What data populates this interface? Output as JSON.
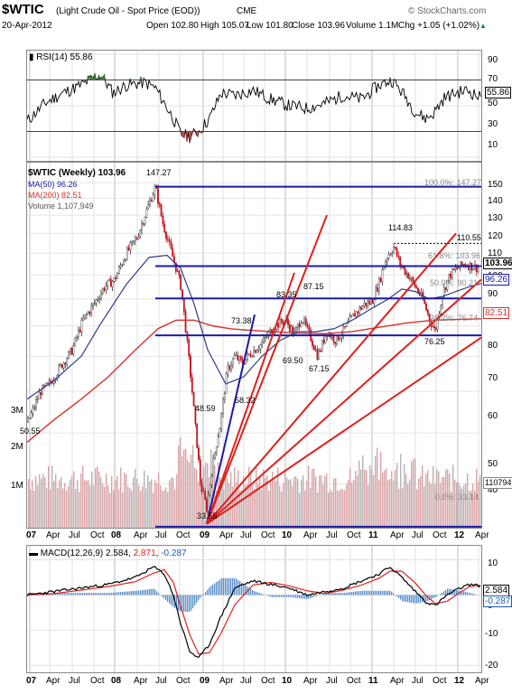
{
  "header": {
    "symbol": "$WTIC",
    "name": "(Light Crude Oil - Spot Price (EOD))",
    "exchange": "CME",
    "brand": "© StockCharts.com",
    "date": "20-Apr-2012",
    "open": "Open 102.80",
    "high": "High 105.07",
    "low": "Low 101.80",
    "close": "Close 103.96",
    "volume": "Volume 1.1M",
    "chg": "Chg +1.05 (+1.02%)",
    "chg_arrow": "▲"
  },
  "colors": {
    "blue": "#1a1aa8",
    "red": "#e0201c",
    "navy": "#2e3d8a",
    "ma200": "#d7322b",
    "vol": "#d9a3a6",
    "volgray": "#b4b4b4",
    "hist": "#5a8fc9",
    "candleUp": "#333333",
    "candleDn": "#c3121f"
  },
  "rsi": {
    "label": "RSI(14) 55.86",
    "current": "55.86",
    "ticks": [
      "90",
      "70",
      "50",
      "30",
      "10"
    ],
    "levels": [
      70,
      30
    ]
  },
  "price": {
    "label": "$WTIC (Weekly) 103.96",
    "ma50": "MA(50) 96.26",
    "ma200": "MA(200) 82.51",
    "volume": "Volume 1,107,949",
    "high_ann": "147.27",
    "ticks": [
      "150",
      "140",
      "130",
      "120",
      "110",
      "100",
      "90",
      "80",
      "70",
      "60",
      "50",
      "40"
    ],
    "last": "103.96",
    "last_ma50": "96.26",
    "last_ma200": "82.51",
    "vol_scale": [
      "3M",
      "2M",
      "1M"
    ],
    "vol_last": "1107949",
    "fib": {
      "f100": "100.0%: 147.27",
      "f618": "61.8%: 103.96",
      "f50": "50.0%: 90.21",
      "f382": "38.2%: 76.74",
      "f0": "0.0%: 33.14"
    },
    "annotations": [
      "114.83",
      "110.55",
      "87.15",
      "83.35",
      "73.38",
      "69.50",
      "67.15",
      "58.32",
      "48.59",
      "76.25",
      "50.55",
      "33.55"
    ]
  },
  "macd": {
    "label": "MACD(12,26,9)",
    "v1": "2.584",
    "v2": "2.871",
    "v3": "-0.287",
    "ticks": [
      "10",
      "0",
      "-10",
      "-20"
    ],
    "last_macd": "2.584",
    "last_hist": "-0.287"
  },
  "x_axis": [
    "07",
    "Apr",
    "Jul",
    "Oct",
    "08",
    "Apr",
    "Jul",
    "Oct",
    "09",
    "Apr",
    "Jul",
    "Oct",
    "10",
    "Apr",
    "Jul",
    "Oct",
    "11",
    "Apr",
    "Jul",
    "Oct",
    "12",
    "Apr"
  ],
  "chart_data": {
    "type": "line",
    "title": "$WTIC (Light Crude Oil - Spot Price (EOD)) CME",
    "x": [
      "07",
      "Apr",
      "Jul",
      "Oct",
      "08",
      "Apr",
      "Jul",
      "Oct",
      "09",
      "Apr",
      "Jul",
      "Oct",
      "10",
      "Apr",
      "Jul",
      "Oct",
      "11",
      "Apr",
      "Jul",
      "Oct",
      "12",
      "Apr"
    ],
    "series": [
      {
        "name": "$WTIC (Weekly) 103.96",
        "values": [
          58,
          62,
          72,
          86,
          96,
          110,
          140,
          95,
          42,
          48,
          65,
          78,
          80,
          76,
          76,
          82,
          92,
          108,
          96,
          84,
          100,
          104
        ]
      },
      {
        "name": "MA(50) 96.26",
        "values": [
          58,
          62,
          66,
          76,
          86,
          100,
          108,
          102,
          78,
          64,
          60,
          68,
          74,
          76,
          78,
          80,
          84,
          88,
          90,
          90,
          92,
          96
        ]
      },
      {
        "name": "MA(200) 82.51",
        "values": [
          50,
          52,
          56,
          60,
          66,
          74,
          80,
          82,
          80,
          78,
          78,
          78,
          78,
          77,
          77,
          78,
          79,
          80,
          81,
          82,
          82,
          83
        ]
      }
    ],
    "ylim": [
      33,
      150
    ],
    "y_scale": "log",
    "fibonacci": {
      "100.0%": 147.27,
      "61.8%": 103.96,
      "50.0%": 90.21,
      "38.2%": 76.74,
      "0.0%": 33.14
    },
    "rsi": {
      "period": 14,
      "last": 55.86,
      "ylim": [
        10,
        90
      ]
    },
    "macd": {
      "params": "12,26,9",
      "macd": 2.584,
      "signal": 2.871,
      "hist": -0.287,
      "ylim": [
        -20,
        10
      ]
    }
  }
}
